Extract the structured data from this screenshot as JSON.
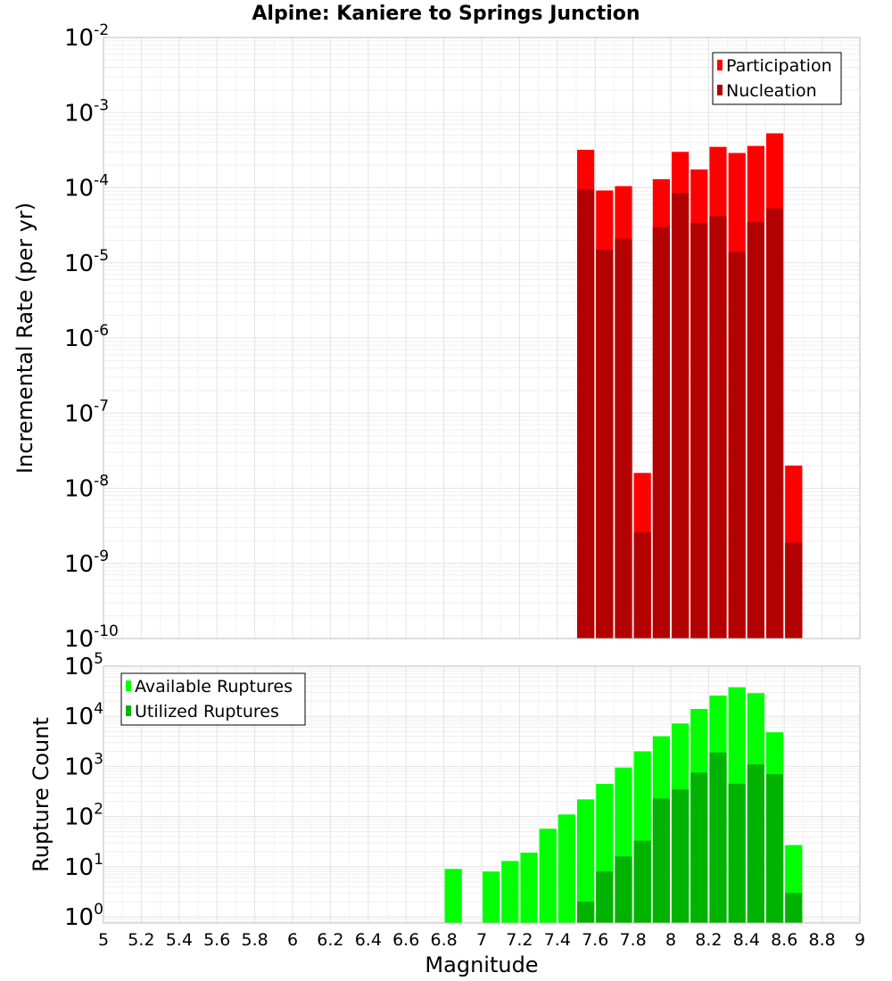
{
  "title": "Alpine: Kaniere to Springs Junction",
  "x_axis": {
    "label": "Magnitude",
    "range": [
      5,
      9
    ],
    "ticks": [
      "5",
      "5.2",
      "5.4",
      "5.6",
      "5.8",
      "6",
      "6.2",
      "6.4",
      "6.6",
      "6.8",
      "7",
      "7.2",
      "7.4",
      "7.6",
      "7.8",
      "8",
      "8.2",
      "8.4",
      "8.6",
      "8.8",
      "9"
    ]
  },
  "chart_data": [
    {
      "type": "bar",
      "ylabel": "Incremental Rate (per yr)",
      "y_scale": "log",
      "ylim": [
        1e-10,
        0.01
      ],
      "y_ticks": [
        {
          "base": "10",
          "exp": "-10"
        },
        {
          "base": "10",
          "exp": "-9"
        },
        {
          "base": "10",
          "exp": "-8"
        },
        {
          "base": "10",
          "exp": "-7"
        },
        {
          "base": "10",
          "exp": "-6"
        },
        {
          "base": "10",
          "exp": "-5"
        },
        {
          "base": "10",
          "exp": "-4"
        },
        {
          "base": "10",
          "exp": "-3"
        },
        {
          "base": "10",
          "exp": "-2"
        }
      ],
      "grid": true,
      "legend_position": "top-right",
      "x": [
        7.55,
        7.65,
        7.75,
        7.85,
        7.95,
        8.05,
        8.15,
        8.25,
        8.35,
        8.45,
        8.55,
        8.65
      ],
      "series": [
        {
          "name": "Participation",
          "color": "#ff0000",
          "values": [
            0.00032,
            9.2e-05,
            0.000105,
            1.6e-08,
            0.00013,
            0.0003,
            0.000175,
            0.00035,
            0.00029,
            0.00036,
            0.00053,
            2e-08
          ]
        },
        {
          "name": "Nucleation",
          "color": "#b30000",
          "values": [
            9.5e-05,
            1.5e-05,
            2.1e-05,
            2.6e-09,
            3e-05,
            8.5e-05,
            3.4e-05,
            4.2e-05,
            1.4e-05,
            3.5e-05,
            5.3e-05,
            1.9e-09
          ]
        }
      ]
    },
    {
      "type": "bar",
      "ylabel": "Rupture Count",
      "y_scale": "log",
      "ylim": [
        0.75,
        100000.0
      ],
      "y_ticks": [
        {
          "base": "10",
          "exp": "0"
        },
        {
          "base": "10",
          "exp": "1"
        },
        {
          "base": "10",
          "exp": "2"
        },
        {
          "base": "10",
          "exp": "3"
        },
        {
          "base": "10",
          "exp": "4"
        },
        {
          "base": "10",
          "exp": "5"
        }
      ],
      "grid": true,
      "legend_position": "top-left",
      "x": [
        6.85,
        7.05,
        7.15,
        7.25,
        7.35,
        7.45,
        7.55,
        7.65,
        7.75,
        7.85,
        7.95,
        8.05,
        8.15,
        8.25,
        8.35,
        8.45,
        8.55,
        8.65
      ],
      "series": [
        {
          "name": "Available Ruptures",
          "color": "#00ff00",
          "values": [
            9,
            8,
            13,
            19,
            57,
            110,
            220,
            450,
            950,
            2000,
            4000,
            7200,
            14000,
            26000,
            38000,
            29000,
            4800,
            27
          ]
        },
        {
          "name": "Utilized Ruptures",
          "color": "#00b300",
          "values": [
            null,
            null,
            null,
            null,
            null,
            null,
            2,
            8,
            16,
            33,
            230,
            350,
            750,
            1900,
            450,
            1100,
            700,
            3
          ]
        }
      ]
    }
  ]
}
